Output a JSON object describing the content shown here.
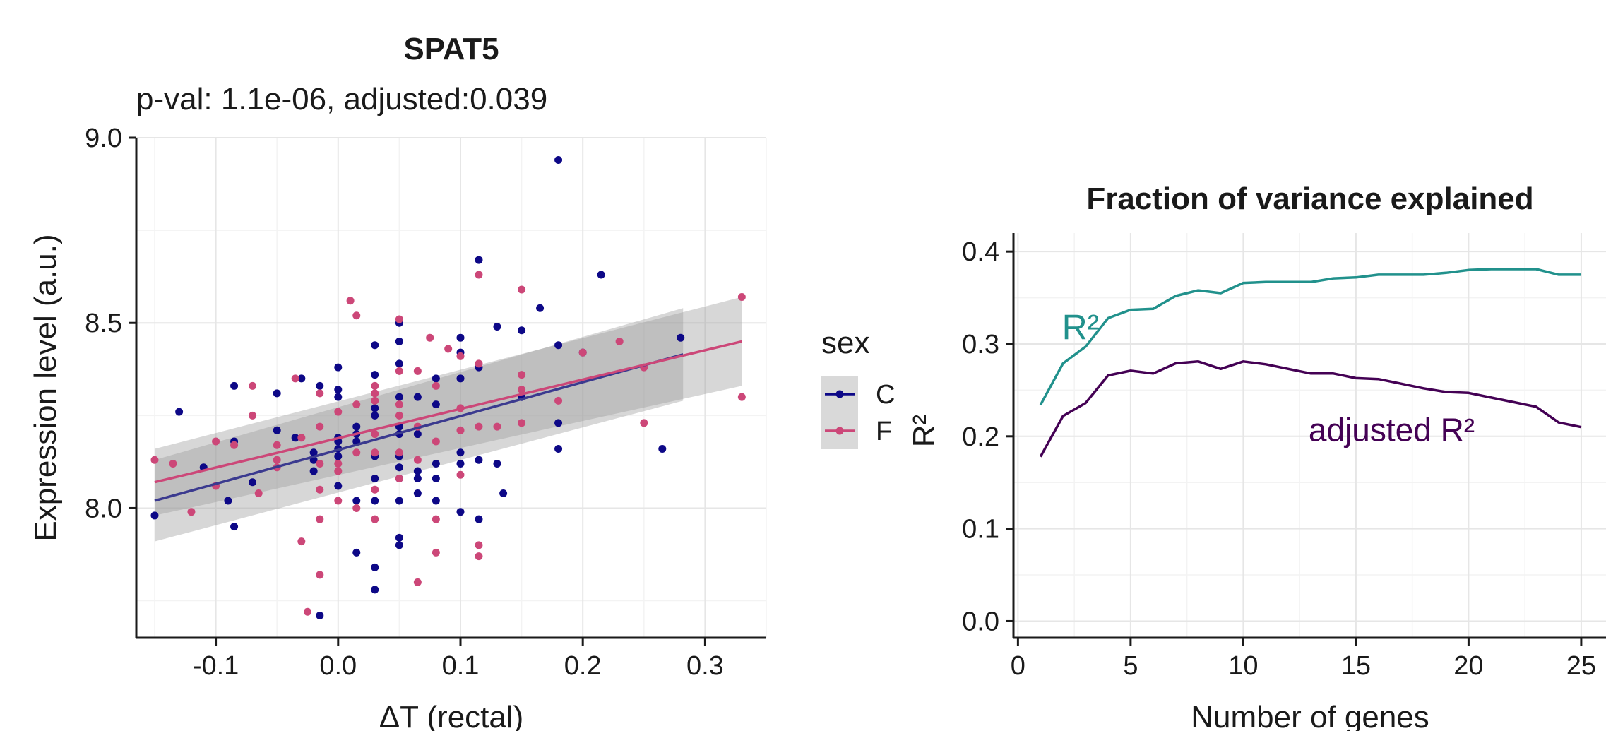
{
  "chart_data": [
    {
      "type": "scatter",
      "title": "SPAT5",
      "subtitle": "p-val: 1.1e-06,  adjusted:0.039",
      "xlabel": "ΔT (rectal)",
      "ylabel": "Expression level (a.u.)",
      "xlim": [
        -0.165,
        0.35
      ],
      "ylim": [
        7.65,
        9.0
      ],
      "x_ticks": [
        -0.1,
        0.0,
        0.1,
        0.2,
        0.3
      ],
      "x_tick_labels": [
        "-0.1",
        "0.0",
        "0.1",
        "0.2",
        "0.3"
      ],
      "y_ticks": [
        8.0,
        8.5,
        9.0
      ],
      "y_tick_labels": [
        "8.0",
        "8.5",
        "9.0"
      ],
      "grid": true,
      "legend": {
        "title": "sex",
        "placement": "right",
        "entries": [
          "C",
          "F"
        ]
      },
      "series": [
        {
          "name": "C",
          "color": "#0d0887",
          "points": [
            [
              -0.15,
              7.98
            ],
            [
              -0.13,
              8.26
            ],
            [
              -0.11,
              8.11
            ],
            [
              -0.09,
              8.02
            ],
            [
              -0.085,
              7.95
            ],
            [
              -0.085,
              8.33
            ],
            [
              -0.085,
              8.18
            ],
            [
              -0.07,
              8.07
            ],
            [
              -0.05,
              8.21
            ],
            [
              -0.05,
              8.31
            ],
            [
              -0.035,
              8.19
            ],
            [
              -0.03,
              8.35
            ],
            [
              -0.02,
              8.13
            ],
            [
              -0.02,
              8.15
            ],
            [
              -0.02,
              8.1
            ],
            [
              -0.015,
              8.33
            ],
            [
              -0.015,
              7.71
            ],
            [
              0.0,
              8.38
            ],
            [
              0.0,
              8.32
            ],
            [
              0.0,
              8.3
            ],
            [
              0.0,
              8.19
            ],
            [
              0.0,
              8.18
            ],
            [
              0.0,
              8.16
            ],
            [
              0.0,
              8.14
            ],
            [
              0.0,
              8.06
            ],
            [
              0.015,
              8.22
            ],
            [
              0.015,
              8.2
            ],
            [
              0.015,
              8.18
            ],
            [
              0.015,
              8.02
            ],
            [
              0.015,
              7.88
            ],
            [
              0.03,
              8.44
            ],
            [
              0.03,
              8.36
            ],
            [
              0.03,
              8.27
            ],
            [
              0.03,
              8.25
            ],
            [
              0.03,
              8.14
            ],
            [
              0.03,
              8.08
            ],
            [
              0.03,
              8.02
            ],
            [
              0.03,
              7.84
            ],
            [
              0.03,
              7.78
            ],
            [
              0.05,
              8.5
            ],
            [
              0.05,
              8.45
            ],
            [
              0.05,
              8.39
            ],
            [
              0.05,
              8.3
            ],
            [
              0.05,
              8.22
            ],
            [
              0.05,
              8.2
            ],
            [
              0.05,
              8.14
            ],
            [
              0.05,
              8.11
            ],
            [
              0.05,
              8.08
            ],
            [
              0.05,
              8.02
            ],
            [
              0.05,
              7.92
            ],
            [
              0.05,
              7.9
            ],
            [
              0.065,
              8.3
            ],
            [
              0.065,
              8.1
            ],
            [
              0.065,
              8.08
            ],
            [
              0.065,
              8.04
            ],
            [
              0.065,
              8.2
            ],
            [
              0.08,
              8.35
            ],
            [
              0.08,
              8.28
            ],
            [
              0.08,
              8.12
            ],
            [
              0.08,
              8.08
            ],
            [
              0.08,
              8.02
            ],
            [
              0.1,
              8.46
            ],
            [
              0.1,
              8.42
            ],
            [
              0.1,
              8.35
            ],
            [
              0.1,
              8.15
            ],
            [
              0.1,
              8.12
            ],
            [
              0.1,
              7.99
            ],
            [
              0.115,
              8.67
            ],
            [
              0.115,
              8.38
            ],
            [
              0.115,
              8.13
            ],
            [
              0.115,
              7.97
            ],
            [
              0.13,
              8.49
            ],
            [
              0.13,
              8.12
            ],
            [
              0.135,
              8.04
            ],
            [
              0.15,
              8.48
            ],
            [
              0.15,
              8.3
            ],
            [
              0.165,
              8.54
            ],
            [
              0.18,
              8.94
            ],
            [
              0.18,
              8.44
            ],
            [
              0.18,
              8.23
            ],
            [
              0.18,
              8.16
            ],
            [
              0.2,
              8.42
            ],
            [
              0.215,
              8.63
            ],
            [
              0.265,
              8.16
            ],
            [
              0.28,
              8.46
            ]
          ]
        },
        {
          "name": "F",
          "color": "#cc4778",
          "points": [
            [
              -0.15,
              8.13
            ],
            [
              -0.135,
              8.12
            ],
            [
              -0.12,
              7.99
            ],
            [
              -0.1,
              8.18
            ],
            [
              -0.1,
              8.06
            ],
            [
              -0.085,
              8.17
            ],
            [
              -0.07,
              8.33
            ],
            [
              -0.07,
              8.25
            ],
            [
              -0.065,
              8.04
            ],
            [
              -0.05,
              8.17
            ],
            [
              -0.05,
              8.13
            ],
            [
              -0.05,
              8.11
            ],
            [
              -0.035,
              8.35
            ],
            [
              -0.03,
              8.19
            ],
            [
              -0.03,
              7.91
            ],
            [
              -0.025,
              7.72
            ],
            [
              -0.015,
              8.31
            ],
            [
              -0.015,
              8.22
            ],
            [
              -0.015,
              8.12
            ],
            [
              -0.015,
              8.05
            ],
            [
              -0.015,
              7.97
            ],
            [
              -0.015,
              7.82
            ],
            [
              0.0,
              8.26
            ],
            [
              0.0,
              8.12
            ],
            [
              0.0,
              8.1
            ],
            [
              0.0,
              8.02
            ],
            [
              0.01,
              8.56
            ],
            [
              0.015,
              8.52
            ],
            [
              0.015,
              8.28
            ],
            [
              0.015,
              8.15
            ],
            [
              0.015,
              8.0
            ],
            [
              0.03,
              8.33
            ],
            [
              0.03,
              8.31
            ],
            [
              0.03,
              8.29
            ],
            [
              0.03,
              8.2
            ],
            [
              0.03,
              8.15
            ],
            [
              0.03,
              8.05
            ],
            [
              0.03,
              7.97
            ],
            [
              0.05,
              8.51
            ],
            [
              0.05,
              8.37
            ],
            [
              0.05,
              8.28
            ],
            [
              0.05,
              8.25
            ],
            [
              0.05,
              8.15
            ],
            [
              0.05,
              8.08
            ],
            [
              0.065,
              8.37
            ],
            [
              0.065,
              8.22
            ],
            [
              0.065,
              8.13
            ],
            [
              0.065,
              7.8
            ],
            [
              0.075,
              8.46
            ],
            [
              0.08,
              8.33
            ],
            [
              0.08,
              8.18
            ],
            [
              0.08,
              7.97
            ],
            [
              0.08,
              7.88
            ],
            [
              0.09,
              8.43
            ],
            [
              0.1,
              8.41
            ],
            [
              0.1,
              8.27
            ],
            [
              0.1,
              8.21
            ],
            [
              0.1,
              8.09
            ],
            [
              0.115,
              8.63
            ],
            [
              0.115,
              8.39
            ],
            [
              0.115,
              8.22
            ],
            [
              0.115,
              7.9
            ],
            [
              0.115,
              7.87
            ],
            [
              0.13,
              8.22
            ],
            [
              0.15,
              8.59
            ],
            [
              0.15,
              8.36
            ],
            [
              0.15,
              8.32
            ],
            [
              0.15,
              8.23
            ],
            [
              0.18,
              8.29
            ],
            [
              0.2,
              8.42
            ],
            [
              0.23,
              8.45
            ],
            [
              0.25,
              8.38
            ],
            [
              0.25,
              8.23
            ],
            [
              0.33,
              8.57
            ],
            [
              0.33,
              8.3
            ]
          ]
        }
      ],
      "fits": [
        {
          "series": "C",
          "x": [
            -0.15,
            0.282
          ],
          "y": [
            8.02,
            8.415
          ],
          "ci_lower": [
            7.91,
            8.29
          ],
          "ci_upper": [
            8.13,
            8.54
          ]
        },
        {
          "series": "F",
          "x": [
            -0.15,
            0.33
          ],
          "y": [
            8.07,
            8.45
          ],
          "ci_lower": [
            7.98,
            8.33
          ],
          "ci_upper": [
            8.16,
            8.57
          ]
        }
      ]
    },
    {
      "type": "line",
      "title": "Fraction of variance explained",
      "xlabel": "Number of genes",
      "ylabel": "R²",
      "xlim": [
        -0.2,
        26.1
      ],
      "ylim": [
        -0.018,
        0.42
      ],
      "x_ticks": [
        0,
        5,
        10,
        15,
        20,
        25
      ],
      "x_tick_labels": [
        "0",
        "5",
        "10",
        "15",
        "20",
        "25"
      ],
      "y_ticks": [
        0.0,
        0.1,
        0.2,
        0.3,
        0.4
      ],
      "y_tick_labels": [
        "0.0",
        "0.1",
        "0.2",
        "0.3",
        "0.4"
      ],
      "grid": true,
      "x": [
        1,
        2,
        3,
        4,
        5,
        6,
        7,
        8,
        9,
        10,
        11,
        12,
        13,
        14,
        15,
        16,
        17,
        18,
        19,
        20,
        21,
        22,
        23,
        24,
        25
      ],
      "series": [
        {
          "name": "R²",
          "label_text": "R²",
          "color": "#21918c",
          "values": [
            0.234,
            0.279,
            0.297,
            0.328,
            0.337,
            0.338,
            0.352,
            0.358,
            0.355,
            0.366,
            0.367,
            0.367,
            0.367,
            0.371,
            0.372,
            0.375,
            0.375,
            0.375,
            0.377,
            0.38,
            0.381,
            0.381,
            0.381,
            0.375,
            0.375
          ]
        },
        {
          "name": "adjusted R²",
          "label_text": "adjusted R²",
          "color": "#440154",
          "values": [
            0.178,
            0.222,
            0.236,
            0.266,
            0.271,
            0.268,
            0.279,
            0.281,
            0.273,
            0.281,
            0.278,
            0.273,
            0.268,
            0.268,
            0.263,
            0.262,
            0.257,
            0.252,
            0.248,
            0.247,
            0.242,
            0.237,
            0.232,
            0.215,
            0.21
          ]
        }
      ]
    }
  ]
}
